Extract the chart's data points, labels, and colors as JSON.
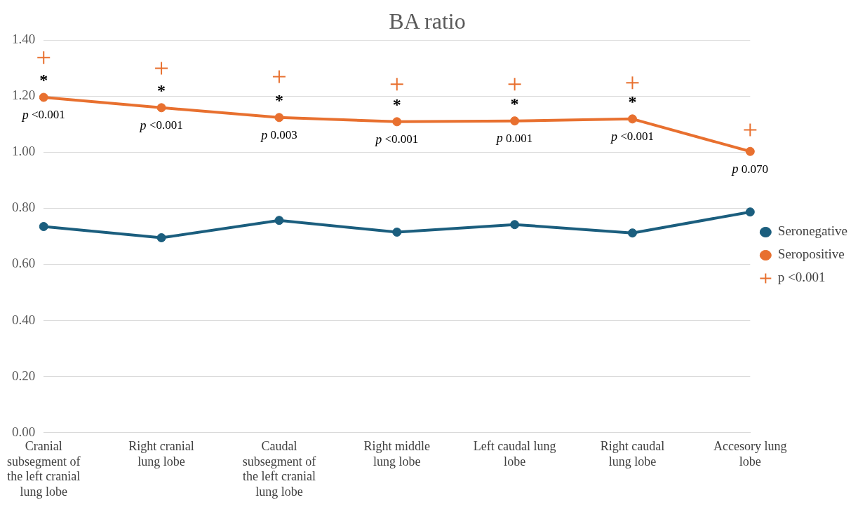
{
  "chart_data": {
    "type": "line",
    "title": "BA ratio",
    "categories": [
      "Cranial subsegment of the left cranial lung lobe",
      "Right cranial lung lobe",
      "Caudal subsegment of the left cranial lung lobe",
      "Right middle lung lobe",
      "Left caudal lung lobe",
      "Right caudal lung lobe",
      "Accesory lung lobe"
    ],
    "series": [
      {
        "name": "Seronegative",
        "color": "#1b5e7e",
        "values": [
          0.735,
          0.695,
          0.757,
          0.715,
          0.742,
          0.712,
          0.787
        ]
      },
      {
        "name": "Seropositive",
        "color": "#e8702f",
        "values": [
          1.196,
          1.159,
          1.124,
          1.109,
          1.112,
          1.119,
          1.003
        ]
      },
      {
        "name": "p <0.001",
        "type": "scatter",
        "marker": "cross",
        "color": "#e8702f",
        "values": [
          1.338,
          1.3,
          1.27,
          1.243,
          1.243,
          1.248,
          1.08
        ]
      }
    ],
    "ylim": [
      0,
      1.4
    ],
    "yticks": [
      {
        "value": 0,
        "label": "0.00"
      },
      {
        "value": 0.2,
        "label": "0.20"
      },
      {
        "value": 0.4,
        "label": "0.40"
      },
      {
        "value": 0.6,
        "label": "0.60"
      },
      {
        "value": 0.8,
        "label": "0.80"
      },
      {
        "value": 1,
        "label": "1.00"
      },
      {
        "value": 1.2,
        "label": "1.20"
      },
      {
        "value": 1.4,
        "label": "1.40"
      }
    ],
    "grid": "y",
    "legend": "right",
    "marker": "circle",
    "annotations": [
      {
        "text": "*",
        "x": "Cranial subsegment of the left cranial lung lobe",
        "y": 1.196
      },
      {
        "text": "*",
        "x": "Right cranial lung lobe",
        "y": 1.159
      },
      {
        "text": "*",
        "x": "Caudal subsegment of the left cranial lung lobe",
        "y": 1.124
      },
      {
        "text": "*",
        "x": "Right middle lung lobe",
        "y": 1.109
      },
      {
        "text": "*",
        "x": "Left caudal lung lobe",
        "y": 1.112
      },
      {
        "text": "*",
        "x": "Right caudal lung lobe",
        "y": 1.119
      },
      {
        "text": "p <0.001",
        "x": "Cranial subsegment of the left cranial lung lobe",
        "y": 1.196
      },
      {
        "text": "p <0.001",
        "x": "Right cranial lung lobe",
        "y": 1.159
      },
      {
        "text": "p 0.003",
        "x": "Caudal subsegment of the left cranial lung lobe",
        "y": 1.124
      },
      {
        "text": "p <0.001",
        "x": "Right middle lung lobe",
        "y": 1.109
      },
      {
        "text": "p 0.001",
        "x": "Left caudal lung lobe",
        "y": 1.112
      },
      {
        "text": "p <0.001",
        "x": "Right caudal lung lobe",
        "y": 1.119
      },
      {
        "text": "p 0.070",
        "x": "Accesory lung lobe",
        "y": 1.003
      }
    ]
  }
}
